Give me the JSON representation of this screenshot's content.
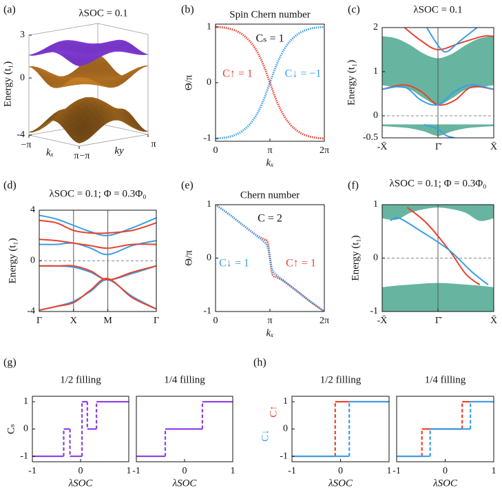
{
  "chart_data": [
    {
      "panel": "(a)",
      "type": "surface3d",
      "title": "λSOC = 0.1",
      "zlabel": "Energy (t₁)",
      "xlabel": "kₓ",
      "ylabel": "ky",
      "zlim": [
        -4,
        3
      ],
      "zticks": [
        3,
        0,
        -4
      ],
      "xlim": [
        -3.1416,
        3.1416
      ],
      "xticks": [
        {
          "value": -3.1416,
          "label": "−π"
        },
        {
          "value": 3.1416,
          "label": "π"
        }
      ],
      "ylim": [
        -3.1416,
        3.1416
      ],
      "yticks": [
        {
          "value": -3.1416,
          "label": "−π"
        },
        {
          "value": 3.1416,
          "label": "π"
        }
      ],
      "colors": [
        "#d98a2a",
        "#d98a2a",
        "#8b3fe6"
      ]
    },
    {
      "panel": "(b)",
      "type": "line",
      "title": "Spin Chern number",
      "xlabel": "kₓ",
      "ylabel": "Θ/π",
      "xlim": [
        0,
        6.2832
      ],
      "xticks": [
        0,
        {
          "value": 3.1416,
          "label": "π"
        },
        {
          "value": 6.2832,
          "label": "2π"
        }
      ],
      "ylim": [
        -1.05,
        1.05
      ],
      "yticks": [
        -1,
        0,
        1
      ],
      "annotations": [
        {
          "text": "Cₛ = 1"
        },
        {
          "text": "C↑ = 1",
          "color": "#e8412c"
        },
        {
          "text": "C↓ = −1",
          "color": "#3a9de8"
        }
      ],
      "series": [
        {
          "color": "#e8412c",
          "x": [
            0,
            0.3927,
            0.7854,
            1.1781,
            1.5708,
            1.9635,
            2.3562,
            2.7489,
            3.1416,
            3.5343,
            3.927,
            4.3197,
            4.7124,
            5.1051,
            5.4978,
            5.8905,
            6.2832
          ],
          "values": [
            1,
            0.99,
            0.97,
            0.93,
            0.86,
            0.75,
            0.58,
            0.33,
            0,
            -0.33,
            -0.58,
            -0.75,
            -0.86,
            -0.93,
            -0.97,
            -0.99,
            -1
          ]
        },
        {
          "color": "#3a9de8",
          "x": [
            0,
            0.3927,
            0.7854,
            1.1781,
            1.5708,
            1.9635,
            2.3562,
            2.7489,
            3.1416,
            3.5343,
            3.927,
            4.3197,
            4.7124,
            5.1051,
            5.4978,
            5.8905,
            6.2832
          ],
          "values": [
            -1,
            -0.99,
            -0.97,
            -0.93,
            -0.86,
            -0.75,
            -0.58,
            -0.33,
            0,
            0.33,
            0.58,
            0.75,
            0.86,
            0.93,
            0.97,
            0.99,
            1
          ]
        }
      ]
    },
    {
      "panel": "(c)",
      "type": "band",
      "title": "λSOC = 0.1",
      "ylabel": "Energy (t₁)",
      "xlim": [
        -1,
        1
      ],
      "xticks": [
        {
          "value": -1,
          "label": "-X̄"
        },
        {
          "value": 0,
          "label": "Γ̄"
        },
        {
          "value": 1,
          "label": "X̄"
        }
      ],
      "ylim": [
        -0.5,
        2
      ],
      "yticks": [
        -0.5,
        0,
        1,
        2
      ],
      "xgrid": true,
      "reference_line": 0,
      "areas": [
        {
          "color": "#56ad96",
          "x": [
            -1,
            -0.75,
            -0.5,
            -0.25,
            0,
            0.25,
            0.5,
            0.75,
            1
          ],
          "upper": [
            1.8,
            1.75,
            1.6,
            1.4,
            1.3,
            1.4,
            1.6,
            1.75,
            1.8
          ],
          "lower": [
            0.7,
            0.65,
            0.6,
            0.4,
            0.25,
            0.4,
            0.6,
            0.65,
            0.7
          ]
        },
        {
          "color": "#56ad96",
          "x": [
            -1,
            -0.75,
            -0.5,
            -0.25,
            0,
            0.25,
            0.5,
            0.75,
            1
          ],
          "upper": [
            -0.2,
            -0.2,
            -0.2,
            -0.2,
            -0.2,
            -0.2,
            -0.2,
            -0.2,
            -0.2
          ],
          "lower": [
            -0.23,
            -0.25,
            -0.28,
            -0.35,
            -0.45,
            -0.35,
            -0.28,
            -0.25,
            -0.23
          ]
        }
      ],
      "series": [
        {
          "color": "#e8412c",
          "x": [
            -0.6,
            -0.3,
            0,
            0.4,
            0.8,
            1
          ],
          "values": [
            2,
            1.7,
            1.5,
            1.65,
            1.8,
            1.8
          ]
        },
        {
          "color": "#3a9de8",
          "x": [
            -0.2,
            0,
            0.15,
            0.4,
            0.7
          ],
          "values": [
            2,
            1.6,
            1.45,
            1.7,
            2
          ]
        },
        {
          "color": "#e8412c",
          "x": [
            -1,
            -0.6,
            -0.3,
            0,
            0.3,
            0.6,
            1
          ],
          "values": [
            0.6,
            0.7,
            0.55,
            0.25,
            0.35,
            0.65,
            0.6
          ]
        },
        {
          "color": "#3a9de8",
          "x": [
            -1,
            -0.6,
            -0.3,
            0,
            0.3,
            0.6,
            1
          ],
          "values": [
            0.6,
            0.65,
            0.35,
            0.25,
            0.55,
            0.7,
            0.6
          ]
        },
        {
          "color": "#3a9de8",
          "x": [
            -0.25,
            0,
            0.15,
            0.3
          ],
          "values": [
            -0.2,
            -0.3,
            -0.45,
            -0.5
          ]
        }
      ]
    },
    {
      "panel": "(d)",
      "type": "band",
      "title": "λSOC = 0.1; Φ = 0.3Φ₀",
      "ylabel": "Energy (t₁)",
      "xlim": [
        0,
        3.414
      ],
      "xticks": [
        {
          "value": 0,
          "label": "Γ"
        },
        {
          "value": 1,
          "label": "X"
        },
        {
          "value": 2,
          "label": "M"
        },
        {
          "value": 3.414,
          "label": "Γ"
        }
      ],
      "ylim": [
        -4,
        4
      ],
      "yticks": [
        -4,
        0,
        4
      ],
      "xgrid": true,
      "reference_line": 0,
      "series": [
        {
          "color": "#3a9de8",
          "x": [
            0,
            0.5,
            1,
            1.5,
            2,
            2.707,
            3.414
          ],
          "values": [
            3.6,
            3.3,
            2.8,
            2.3,
            2.0,
            2.6,
            3.4
          ]
        },
        {
          "color": "#3a9de8",
          "x": [
            0,
            0.5,
            1,
            1.5,
            2,
            2.707,
            3.414
          ],
          "values": [
            1.3,
            1.3,
            1.4,
            1.0,
            0.5,
            1.2,
            1.6
          ]
        },
        {
          "color": "#3a9de8",
          "x": [
            0,
            0.5,
            1,
            1.5,
            2,
            2.707,
            3.414
          ],
          "values": [
            -0.4,
            -0.4,
            -0.5,
            -0.9,
            -1.5,
            -1.0,
            -0.4
          ]
        },
        {
          "color": "#3a9de8",
          "x": [
            0,
            0.5,
            1,
            1.5,
            2,
            2.707,
            3.414
          ],
          "values": [
            -3.9,
            -3.6,
            -3.2,
            -2.4,
            -1.5,
            -2.8,
            -3.8
          ]
        },
        {
          "color": "#e8412c",
          "x": [
            0,
            0.5,
            1,
            1.5,
            2,
            2.707,
            3.414
          ],
          "values": [
            3.2,
            3.0,
            2.4,
            2.2,
            2.2,
            2.4,
            3.0
          ]
        },
        {
          "color": "#e8412c",
          "x": [
            0,
            0.5,
            1,
            1.5,
            2,
            2.707,
            3.414
          ],
          "values": [
            1.7,
            1.6,
            1.4,
            1.2,
            1.0,
            1.3,
            1.3
          ]
        },
        {
          "color": "#e8412c",
          "x": [
            0,
            0.5,
            1,
            1.5,
            2,
            2.707,
            3.414
          ],
          "values": [
            -0.4,
            -0.4,
            -0.4,
            -0.8,
            -1.5,
            -0.9,
            -0.4
          ]
        },
        {
          "color": "#e8412c",
          "x": [
            0,
            0.5,
            1,
            1.5,
            2,
            2.707,
            3.414
          ],
          "values": [
            -3.9,
            -3.6,
            -3.3,
            -2.3,
            -1.4,
            -2.9,
            -3.8
          ]
        }
      ]
    },
    {
      "panel": "(e)",
      "type": "line",
      "title": "Chern number",
      "xlabel": "kₓ",
      "ylabel": "Θ/π",
      "xlim": [
        0,
        6.2832
      ],
      "xticks": [
        0,
        {
          "value": 3.1416,
          "label": "π"
        },
        {
          "value": 6.2832,
          "label": "2π"
        }
      ],
      "ylim": [
        -1,
        1
      ],
      "yticks": [
        -1,
        0,
        1
      ],
      "annotations": [
        {
          "text": "C = 2"
        },
        {
          "text": "C↓ = 1",
          "color": "#3a9de8"
        },
        {
          "text": "C↑ = 1",
          "color": "#e8412c"
        }
      ],
      "series": [
        {
          "color": "#e8412c",
          "x": [
            0,
            0.785,
            1.571,
            2.356,
            2.75,
            3.0,
            3.1416,
            3.28,
            3.53,
            3.93,
            4.71,
            5.5,
            6.2832
          ],
          "values": [
            1,
            0.82,
            0.62,
            0.43,
            0.36,
            0.3,
            0,
            -0.3,
            -0.36,
            -0.43,
            -0.62,
            -0.82,
            -1
          ]
        },
        {
          "color": "#3a9de8",
          "x": [
            0,
            0.785,
            1.571,
            2.356,
            2.75,
            3.0,
            3.1416,
            3.28,
            3.53,
            3.93,
            4.71,
            5.5,
            6.2832
          ],
          "values": [
            1,
            0.82,
            0.62,
            0.42,
            0.32,
            0.22,
            0,
            -0.22,
            -0.32,
            -0.42,
            -0.62,
            -0.82,
            -1
          ]
        }
      ]
    },
    {
      "panel": "(f)",
      "type": "band",
      "title": "λSOC = 0.1; Φ = 0.3Φ₀",
      "ylabel": "Energy (t₁)",
      "xlim": [
        -1,
        1
      ],
      "xticks": [
        {
          "value": -1,
          "label": "-X̄"
        },
        {
          "value": 0,
          "label": "Γ̄"
        },
        {
          "value": 1,
          "label": "X̄"
        }
      ],
      "ylim": [
        -1,
        1
      ],
      "yticks": [
        -1,
        0,
        1
      ],
      "xgrid": true,
      "reference_line": 0,
      "areas": [
        {
          "color": "#56ad96",
          "x": [
            -1,
            -0.75,
            -0.5,
            -0.25,
            0,
            0.25,
            0.5,
            0.75,
            1
          ],
          "upper": [
            1,
            1,
            1,
            1,
            1,
            1,
            1,
            1,
            1
          ],
          "lower": [
            0.75,
            0.72,
            0.85,
            0.92,
            0.95,
            0.92,
            0.85,
            0.7,
            0.75
          ]
        },
        {
          "color": "#56ad96",
          "x": [
            -1,
            -0.75,
            -0.5,
            -0.25,
            0,
            0.25,
            0.5,
            0.75,
            1
          ],
          "upper": [
            -0.55,
            -0.52,
            -0.5,
            -0.48,
            -0.47,
            -0.48,
            -0.5,
            -0.52,
            -0.55
          ],
          "lower": [
            -1,
            -1,
            -1,
            -1,
            -1,
            -1,
            -1,
            -1,
            -1
          ]
        }
      ],
      "series": [
        {
          "color": "#e8412c",
          "x": [
            -0.55,
            -0.2,
            0.2,
            0.5,
            0.75
          ],
          "values": [
            0.95,
            0.65,
            0.15,
            -0.3,
            -0.5
          ]
        },
        {
          "color": "#3a9de8",
          "x": [
            -0.85,
            -0.7,
            -0.3,
            0.2,
            0.6,
            0.9
          ],
          "values": [
            0.7,
            0.75,
            0.5,
            0.15,
            -0.25,
            -0.5
          ]
        }
      ]
    },
    {
      "panel": "(g)",
      "type": "step",
      "title": "1/2 filling",
      "xlabel": "λSOC",
      "ylabel": "Cₛ",
      "xlim": [
        -1,
        1
      ],
      "xticks": [
        -1,
        0,
        1
      ],
      "ylim": [
        -1.2,
        1.2
      ],
      "yticks": [
        -1,
        0,
        1
      ],
      "series": [
        {
          "color": "#8b3fe6",
          "x": [
            -1,
            -0.35,
            -0.35,
            -0.22,
            -0.22,
            0.03,
            0.03,
            0.14,
            0.14,
            0.33,
            0.33,
            1
          ],
          "values": [
            -1,
            -1,
            0,
            0,
            -1,
            -1,
            1,
            1,
            0,
            0,
            1,
            1
          ]
        }
      ]
    },
    {
      "type": "step",
      "title": "1/4 filling",
      "xlabel": "λSOC",
      "xlim": [
        -1,
        1
      ],
      "xticks": [
        -1,
        0,
        1
      ],
      "ylim": [
        -1.2,
        1.2
      ],
      "series": [
        {
          "color": "#8b3fe6",
          "x": [
            -1,
            -0.4,
            -0.4,
            0.37,
            0.37,
            1
          ],
          "values": [
            -1,
            -1,
            0,
            0,
            1,
            1
          ]
        }
      ]
    },
    {
      "panel": "(h)",
      "type": "step",
      "title": "1/2 filling",
      "xlabel": "λSOC",
      "xlim": [
        -1,
        1
      ],
      "xticks": [
        -1,
        0,
        1
      ],
      "ylim": [
        -1.2,
        1.2
      ],
      "yticks": [
        -1,
        0,
        1
      ],
      "series": [
        {
          "name": "C↑",
          "color": "#e8412c",
          "x": [
            -1,
            -0.11,
            -0.11,
            1
          ],
          "values": [
            -1,
            -1,
            1,
            1
          ]
        },
        {
          "name": "C↓",
          "color": "#3a9de8",
          "x": [
            -1,
            0.18,
            0.18,
            1
          ],
          "values": [
            -1,
            -1,
            1,
            1
          ]
        }
      ]
    },
    {
      "type": "step",
      "title": "1/4 filling",
      "xlabel": "λSOC",
      "xlim": [
        -1,
        1
      ],
      "xticks": [
        -1,
        0,
        1
      ],
      "ylim": [
        -1.2,
        1.2
      ],
      "series": [
        {
          "color": "#e8412c",
          "x": [
            -1,
            -0.48,
            -0.48,
            0.35,
            0.35,
            1
          ],
          "values": [
            -1,
            -1,
            0,
            0,
            1,
            1
          ]
        },
        {
          "color": "#3a9de8",
          "x": [
            -1,
            -0.31,
            -0.31,
            0.52,
            0.52,
            1
          ],
          "values": [
            -1,
            -1,
            0,
            0,
            1,
            1
          ]
        }
      ]
    }
  ]
}
